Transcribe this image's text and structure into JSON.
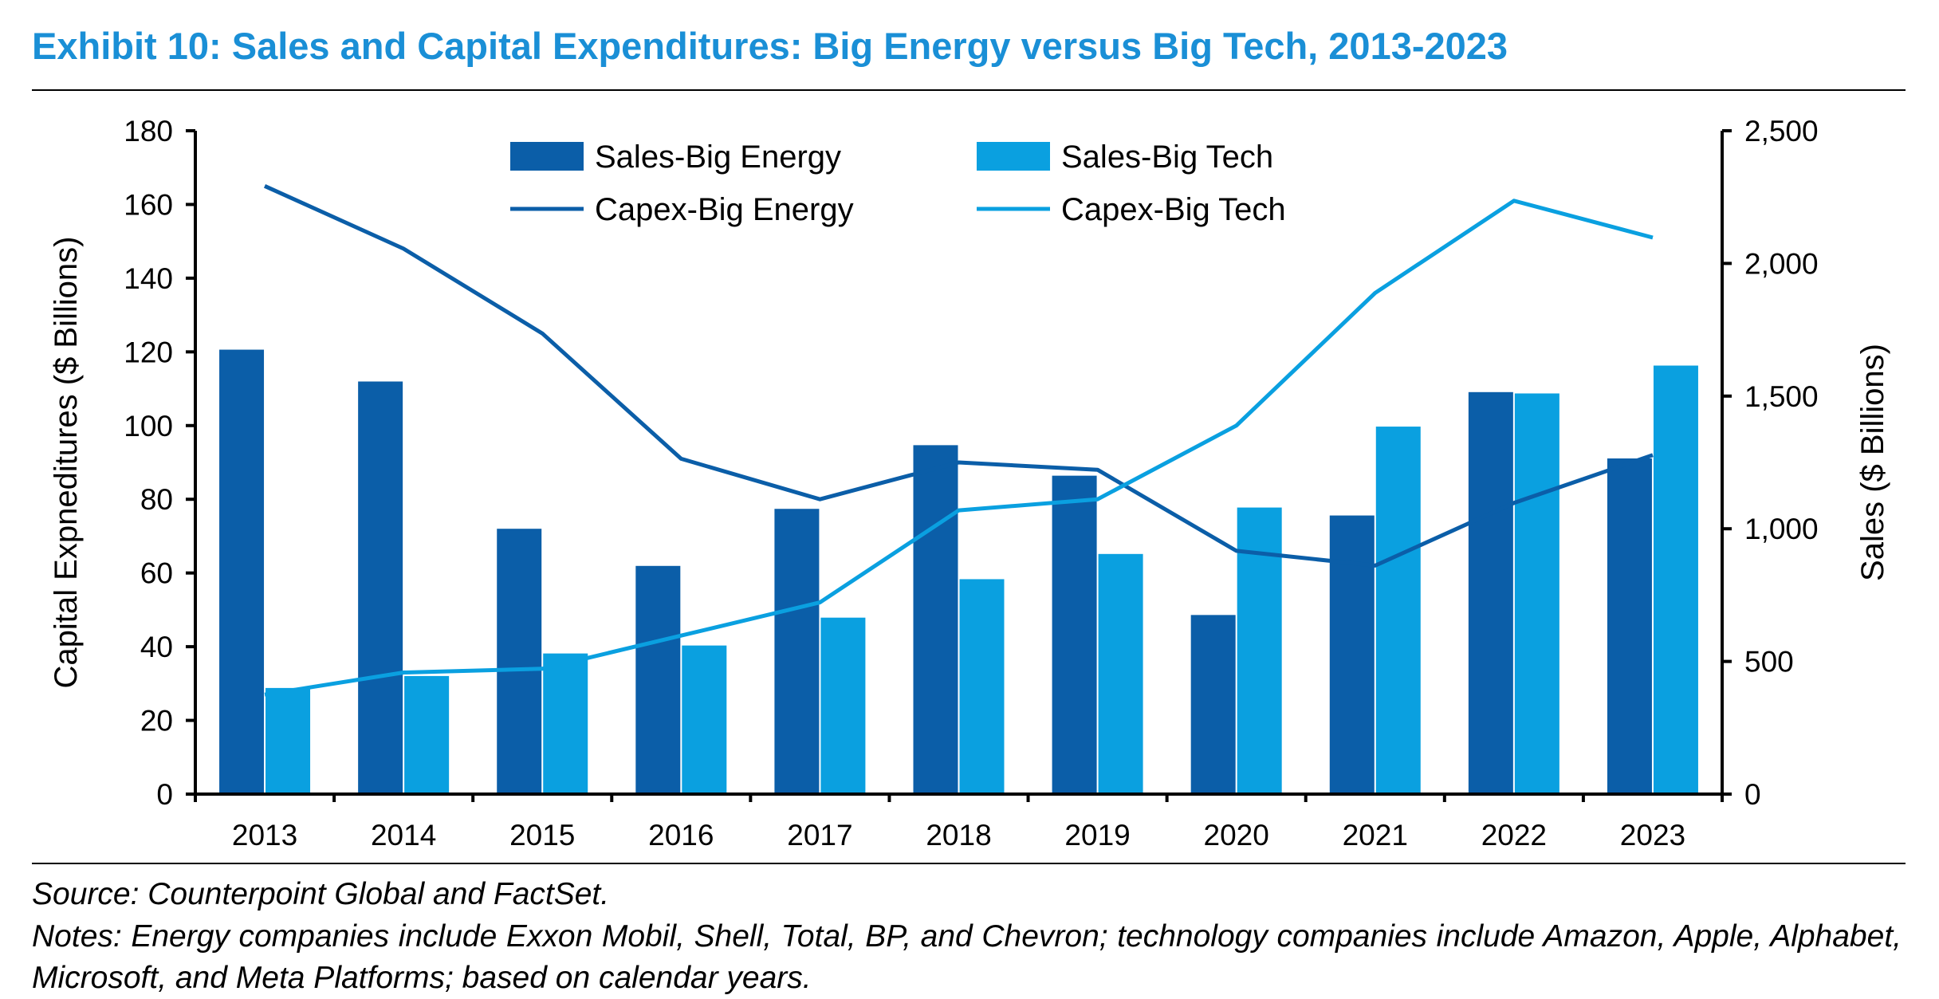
{
  "title": "Exhibit 10: Sales and Capital Expenditures: Big Energy versus Big Tech, 2013-2023",
  "source": "Source: Counterpoint Global and FactSet.",
  "notes": "Notes: Energy companies include Exxon Mobil, Shell, Total, BP, and Chevron; technology companies include Amazon, Apple, Alphabet, Microsoft, and Meta Platforms; based on calendar years.",
  "colors": {
    "title": "#1a8fd6",
    "energy": "#0b5ea8",
    "tech": "#0aa0e0"
  },
  "chart_data": {
    "type": "bar",
    "categories": [
      "2013",
      "2014",
      "2015",
      "2016",
      "2017",
      "2018",
      "2019",
      "2020",
      "2021",
      "2022",
      "2023"
    ],
    "ylabel": "Capital Expneditures ($ Billions)",
    "y2label": "Sales ($ Billions)",
    "ylim": [
      0,
      180
    ],
    "y2lim": [
      0,
      2500
    ],
    "yticks": [
      "0",
      "20",
      "40",
      "60",
      "80",
      "100",
      "120",
      "140",
      "160",
      "180"
    ],
    "y2ticks": [
      "0",
      "500",
      "1,000",
      "1,500",
      "2,000",
      "2,500"
    ],
    "legend_position": "top-center",
    "grid": false,
    "series": [
      {
        "name": "Sales-Big Energy",
        "type": "bar",
        "axis": "right",
        "color": "#0b5ea8",
        "values": [
          1675,
          1555,
          1000,
          860,
          1075,
          1315,
          1200,
          675,
          1050,
          1515,
          1265
        ]
      },
      {
        "name": "Sales-Big Tech",
        "type": "bar",
        "axis": "right",
        "color": "#0aa0e0",
        "values": [
          400,
          445,
          530,
          560,
          665,
          810,
          905,
          1080,
          1385,
          1510,
          1615
        ]
      },
      {
        "name": "Capex-Big Energy",
        "type": "line",
        "axis": "left",
        "color": "#0b5ea8",
        "values": [
          165,
          148,
          125,
          91,
          80,
          90,
          88,
          66,
          62,
          79,
          92
        ]
      },
      {
        "name": "Capex-Big Tech",
        "type": "line",
        "axis": "left",
        "color": "#0aa0e0",
        "values": [
          27,
          33,
          34,
          43,
          52,
          77,
          80,
          100,
          136,
          161,
          151
        ]
      }
    ]
  }
}
